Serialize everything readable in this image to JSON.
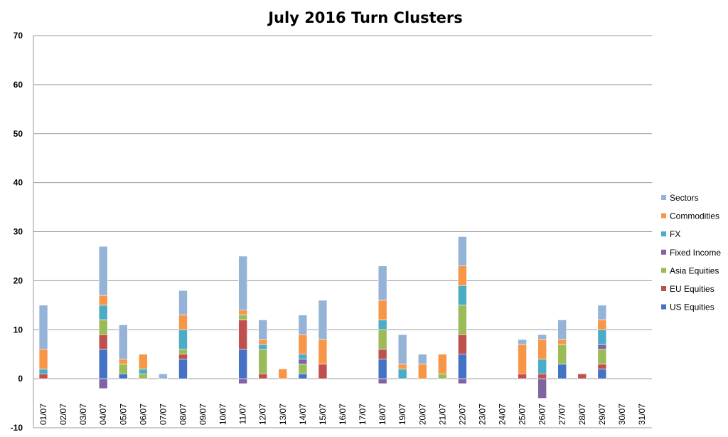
{
  "chart_data": {
    "type": "bar",
    "stacked": true,
    "title": "July 2016 Turn Clusters",
    "xlabel": "",
    "ylabel": "",
    "ylim": [
      -10,
      70
    ],
    "yticks": [
      -10,
      0,
      10,
      20,
      30,
      40,
      50,
      60,
      70
    ],
    "grid": true,
    "legend_position": "right",
    "categories": [
      "01/07",
      "02/07",
      "03/07",
      "04/07",
      "05/07",
      "06/07",
      "07/07",
      "08/07",
      "09/07",
      "10/07",
      "11/07",
      "12/07",
      "13/07",
      "14/07",
      "15/07",
      "16/07",
      "17/07",
      "18/07",
      "19/07",
      "20/07",
      "21/07",
      "22/07",
      "23/07",
      "24/07",
      "25/07",
      "26/07",
      "27/07",
      "28/07",
      "29/07",
      "30/07",
      "31/07"
    ],
    "series": [
      {
        "name": "US Equities",
        "color": "#4472C4",
        "values": [
          0,
          0,
          0,
          6,
          1,
          0,
          0,
          4,
          0,
          0,
          6,
          0,
          0,
          1,
          0,
          0,
          0,
          4,
          0,
          0,
          0,
          5,
          0,
          0,
          0,
          0,
          3,
          0,
          2,
          0,
          0
        ]
      },
      {
        "name": "EU Equities",
        "color": "#C0504D",
        "values": [
          1,
          0,
          0,
          3,
          0,
          0,
          0,
          1,
          0,
          0,
          6,
          1,
          0,
          0,
          3,
          0,
          0,
          2,
          0,
          0,
          0,
          4,
          0,
          0,
          1,
          1,
          0,
          1,
          1,
          0,
          0
        ]
      },
      {
        "name": "Asia Equities",
        "color": "#9BBB59",
        "values": [
          0,
          0,
          0,
          3,
          2,
          1,
          0,
          1,
          0,
          0,
          1,
          5,
          0,
          2,
          0,
          0,
          0,
          4,
          0,
          0,
          1,
          6,
          0,
          0,
          0,
          0,
          4,
          0,
          3,
          0,
          0
        ]
      },
      {
        "name": "Fixed Income",
        "color": "#8064A2",
        "values": [
          0,
          0,
          0,
          -2,
          0,
          0,
          0,
          0,
          0,
          0,
          -1,
          0,
          0,
          1,
          0,
          0,
          0,
          -1,
          0,
          0,
          0,
          -1,
          0,
          0,
          0,
          -4,
          0,
          0,
          1,
          0,
          0
        ]
      },
      {
        "name": "FX",
        "color": "#4BACC6",
        "values": [
          1,
          0,
          0,
          3,
          0,
          1,
          0,
          4,
          0,
          0,
          0,
          1,
          0,
          1,
          0,
          0,
          0,
          2,
          2,
          0,
          0,
          4,
          0,
          0,
          0,
          3,
          0,
          0,
          3,
          0,
          0
        ]
      },
      {
        "name": "Commodities",
        "color": "#F79646",
        "values": [
          4,
          0,
          0,
          2,
          1,
          3,
          0,
          3,
          0,
          0,
          1,
          1,
          2,
          4,
          5,
          0,
          0,
          4,
          1,
          3,
          4,
          4,
          0,
          0,
          6,
          4,
          1,
          0,
          2,
          0,
          0
        ]
      },
      {
        "name": "Sectors",
        "color": "#95B3D7",
        "values": [
          9,
          0,
          0,
          10,
          7,
          0,
          1,
          5,
          0,
          0,
          11,
          4,
          0,
          4,
          8,
          0,
          0,
          7,
          6,
          2,
          0,
          6,
          0,
          0,
          1,
          1,
          4,
          0,
          3,
          0,
          0
        ]
      }
    ]
  }
}
